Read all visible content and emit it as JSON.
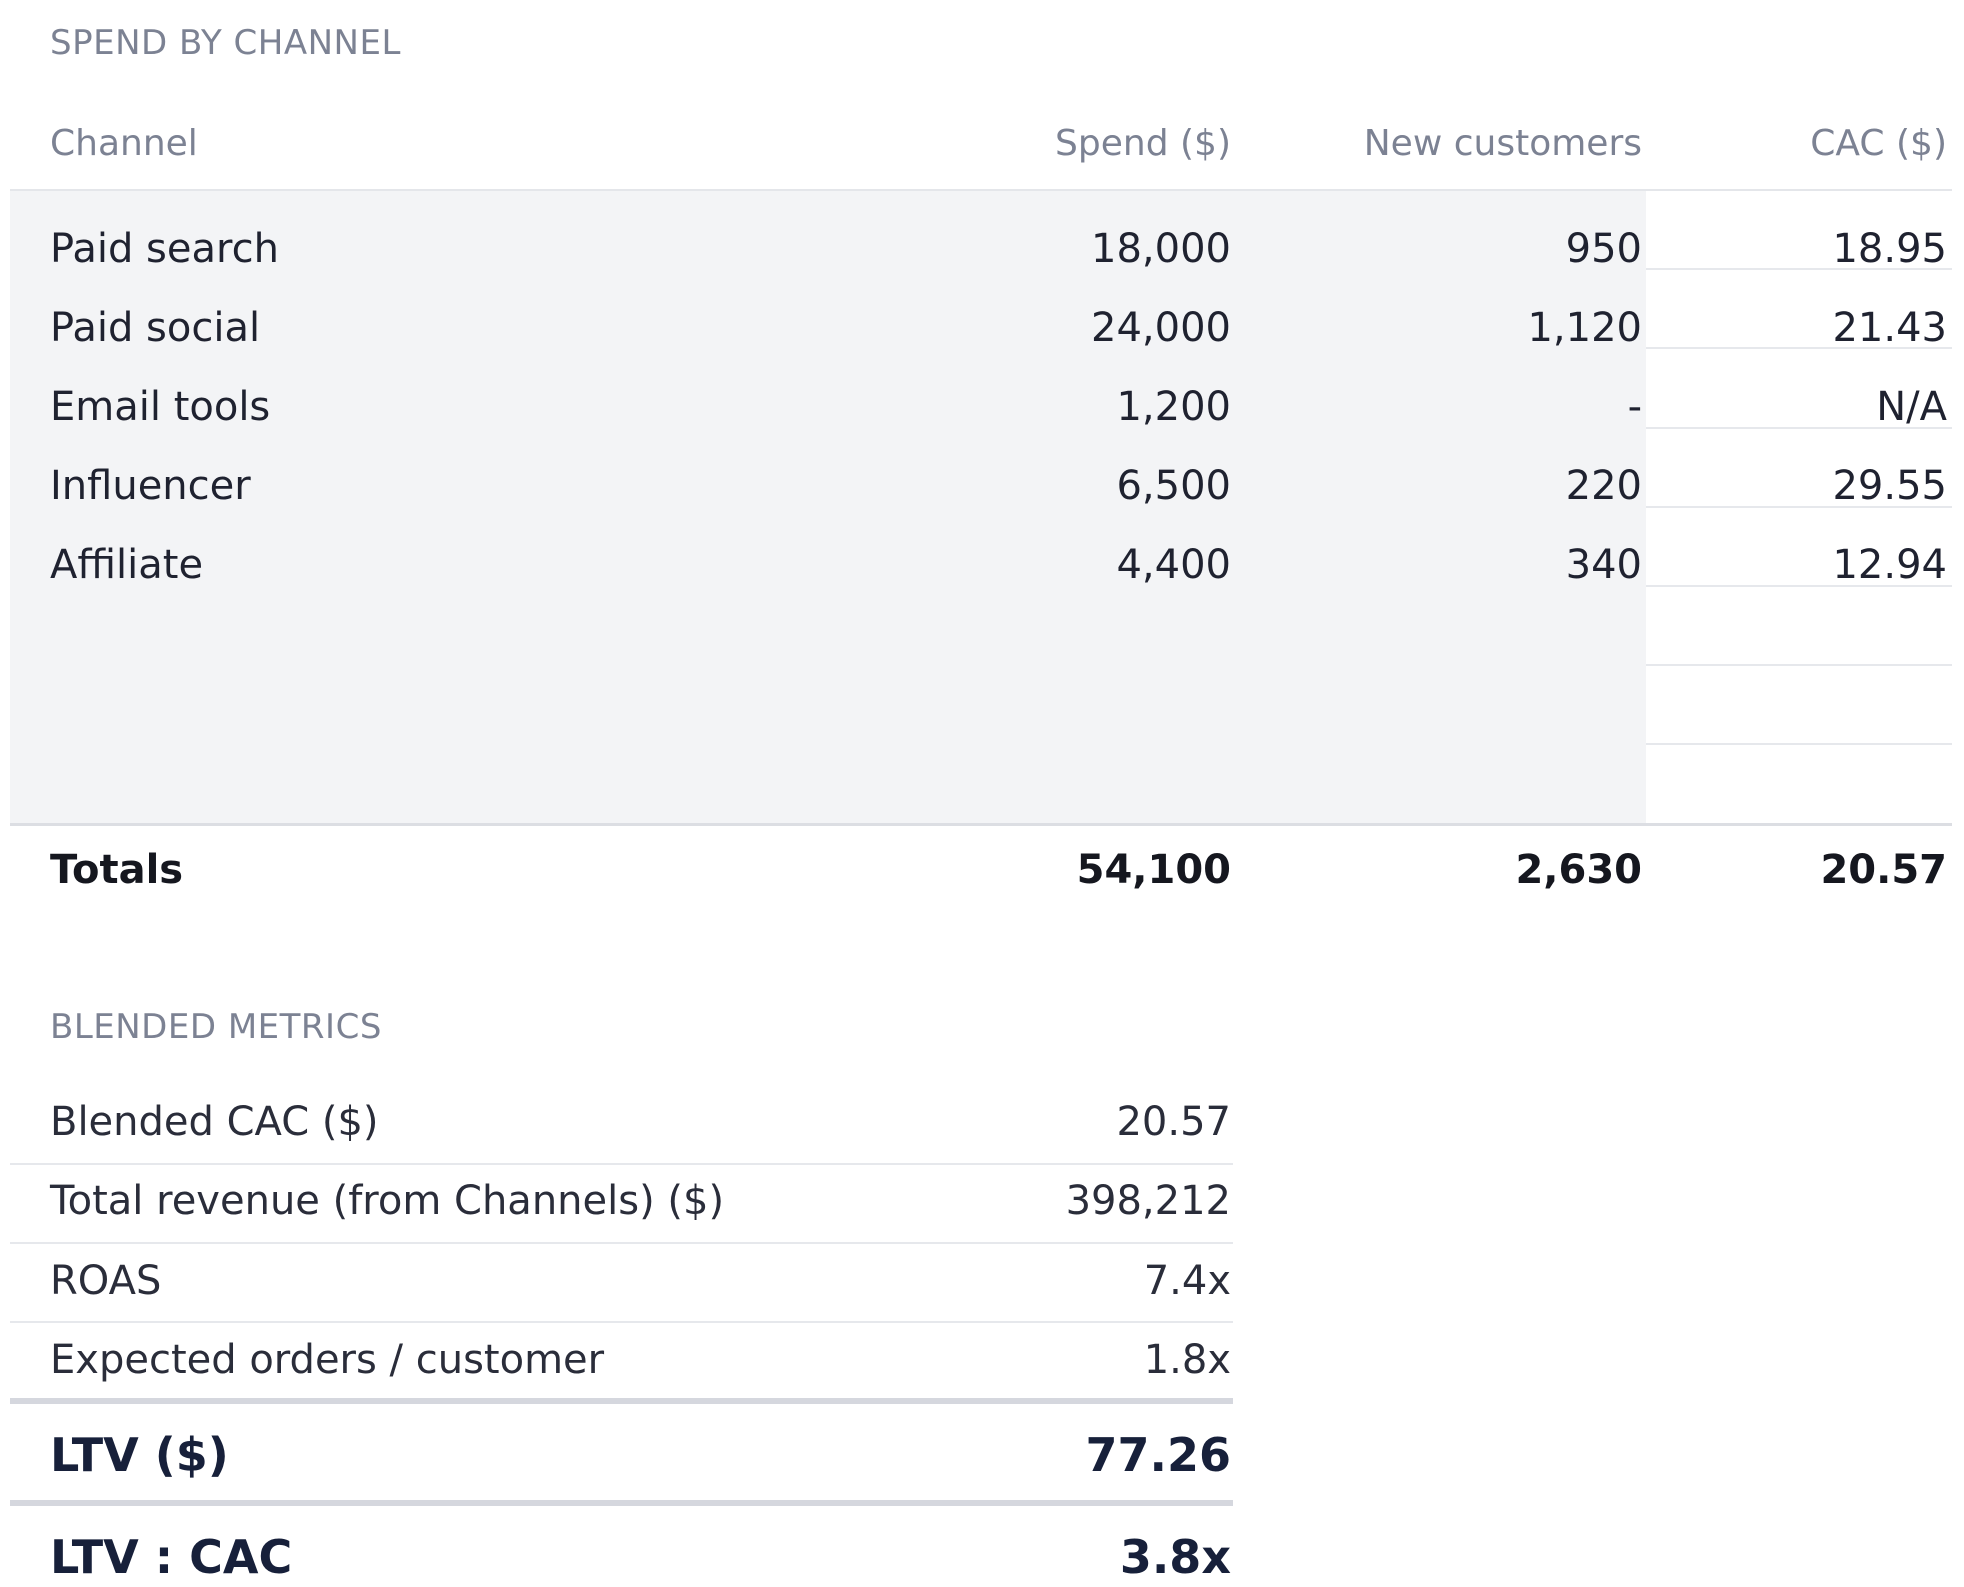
{
  "spend_section": {
    "title": "SPEND BY CHANNEL",
    "columns": {
      "channel": "Channel",
      "spend": "Spend ($)",
      "new_customers": "New customers",
      "cac": "CAC ($)"
    },
    "rows": [
      {
        "channel": "Paid search",
        "spend": "18,000",
        "new_customers": "950",
        "cac": "18.95"
      },
      {
        "channel": "Paid social",
        "spend": "24,000",
        "new_customers": "1,120",
        "cac": "21.43"
      },
      {
        "channel": "Email tools",
        "spend": "1,200",
        "new_customers": "-",
        "cac": "N/A"
      },
      {
        "channel": "Influencer",
        "spend": "6,500",
        "new_customers": "220",
        "cac": "29.55"
      },
      {
        "channel": "Affiliate",
        "spend": "4,400",
        "new_customers": "340",
        "cac": "12.94"
      }
    ],
    "totals": {
      "label": "Totals",
      "spend": "54,100",
      "new_customers": "2,630",
      "cac": "20.57"
    }
  },
  "blended_section": {
    "title": "BLENDED METRICS",
    "rows": [
      {
        "label": "Blended CAC ($)",
        "value": "20.57"
      },
      {
        "label": "Total revenue (from Channels) ($)",
        "value": "398,212"
      },
      {
        "label": "ROAS",
        "value": "7.4x"
      },
      {
        "label": "Expected orders / customer",
        "value": "1.8x"
      }
    ],
    "ltv": {
      "label": "LTV ($)",
      "value": "77.26"
    },
    "ltv_cac": {
      "label": "LTV : CAC",
      "value": "3.8x"
    }
  }
}
